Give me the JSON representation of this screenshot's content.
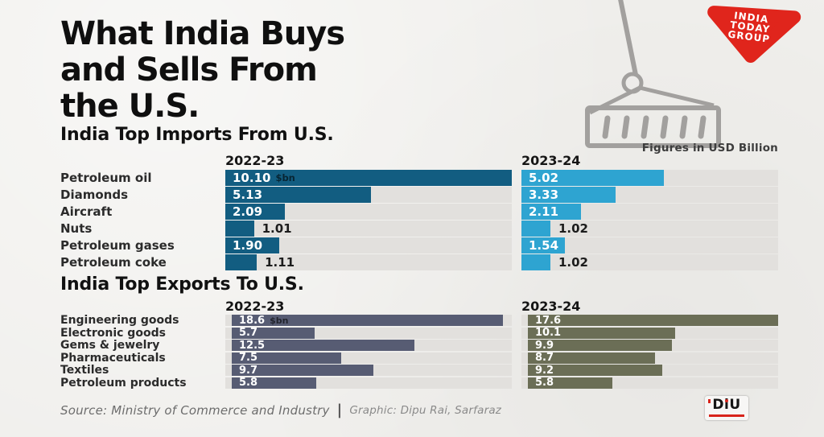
{
  "title": {
    "line1": "What India Buys",
    "line2": "and Sells From",
    "line3": "the U.S."
  },
  "note": "Figures in USD Billion",
  "brand": {
    "name": "India Today Group",
    "line1": "INDIA",
    "line2": "TODAY",
    "line3": "GROUP",
    "color": "#e0251c"
  },
  "footer": {
    "source": "Source: Ministry of Commerce and Industry",
    "divider": "|",
    "credit": "Graphic: Dipu Rai, Sarfaraz"
  },
  "diu": {
    "label": "DiU"
  },
  "colors": {
    "import_2022": "#125d81",
    "import_2023": "#2ea4d1",
    "export_2022": "#575c73",
    "export_2023": "#6b6e56",
    "track": "#e2e0dd",
    "background": "#f0efec",
    "brand_red": "#e0251c"
  },
  "chart_data": [
    {
      "type": "bar",
      "title": "India Top Imports From U.S.",
      "unit": "$bn",
      "columns": [
        "2022-23",
        "2023-24"
      ],
      "categories": [
        "Petroleum oil",
        "Diamonds",
        "Aircraft",
        "Nuts",
        "Petroleum gases",
        "Petroleum coke"
      ],
      "series": [
        {
          "name": "2022-23",
          "color": "#125d81",
          "values": [
            10.1,
            5.13,
            2.09,
            1.01,
            1.9,
            1.11
          ],
          "labels": [
            "10.10",
            "5.13",
            "2.09",
            "1.01",
            "1.90",
            "1.11"
          ]
        },
        {
          "name": "2023-24",
          "color": "#2ea4d1",
          "values": [
            5.02,
            3.33,
            2.11,
            1.02,
            1.54,
            1.02
          ],
          "labels": [
            "5.02",
            "3.33",
            "2.11",
            "1.02",
            "1.54",
            "1.02"
          ]
        }
      ],
      "xlim": [
        0,
        10.1
      ],
      "grid": false,
      "legend_position": "column-headers"
    },
    {
      "type": "bar",
      "title": "India Top Exports To U.S.",
      "unit": "$bn",
      "columns": [
        "2022-23",
        "2023-24"
      ],
      "categories": [
        "Engineering goods",
        "Electronic goods",
        "Gems & jewelry",
        "Pharmaceuticals",
        "Textiles",
        "Petroleum products"
      ],
      "series": [
        {
          "name": "2022-23",
          "color": "#575c73",
          "values": [
            18.6,
            5.7,
            12.5,
            7.5,
            9.7,
            5.8
          ],
          "labels": [
            "18.6",
            "5.7",
            "12.5",
            "7.5",
            "9.7",
            "5.8"
          ]
        },
        {
          "name": "2023-24",
          "color": "#6b6e56",
          "values": [
            17.6,
            10.1,
            9.9,
            8.7,
            9.2,
            5.8
          ],
          "labels": [
            "17.6",
            "10.1",
            "9.9",
            "8.7",
            "9.2",
            "5.8"
          ]
        }
      ],
      "xlim": [
        0,
        18.6
      ],
      "grid": false,
      "legend_position": "column-headers"
    }
  ]
}
